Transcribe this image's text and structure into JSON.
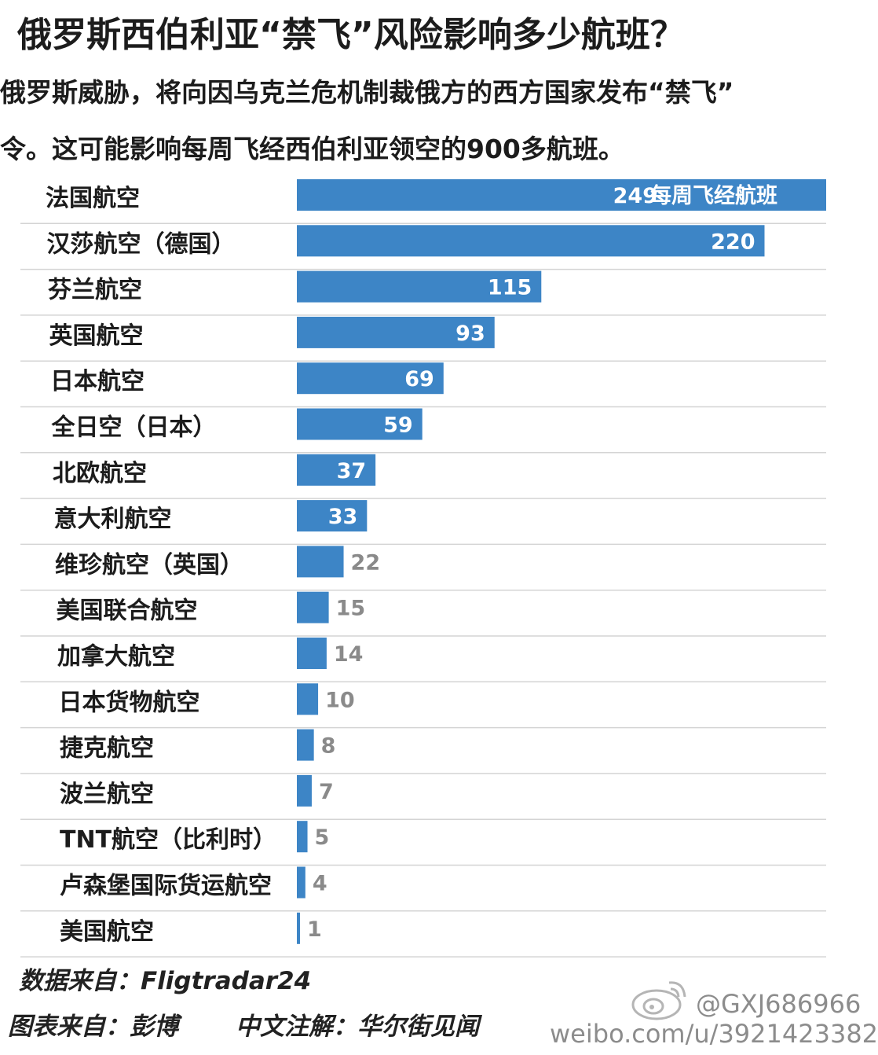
{
  "header": {
    "title": "俄罗斯西伯利亚“禁飞”风险影响多少航班？",
    "subtitle_line1": "俄罗斯威胁，将向因乌克兰危机制裁俄方的西方国家发布“禁飞”",
    "subtitle_line2": "令。这可能影响每周飞经西伯利亚领空的900多航班。"
  },
  "chart_data": {
    "type": "bar",
    "orientation": "horizontal",
    "categories": [
      "法国航空",
      "汉莎航空（德国）",
      "芬兰航空",
      "英国航空",
      "日本航空",
      "全日空（日本）",
      "北欧航空",
      "意大利航空",
      "维珍航空（英国）",
      "美国联合航空",
      "加拿大航空",
      "日本货物航空",
      "捷克航空",
      "波兰航空",
      "TNT航空（比利时）",
      "卢森堡国际货运航空",
      "美国航空"
    ],
    "values": [
      249,
      220,
      115,
      93,
      69,
      59,
      37,
      33,
      22,
      15,
      14,
      10,
      8,
      7,
      5,
      4,
      1
    ],
    "first_bar_unit_label": "每周飞经航班",
    "bar_color": "#3d85c6",
    "xlim": [
      0,
      249
    ],
    "grid": "horizontal row separators"
  },
  "footer": {
    "data_source": "数据来自：Fligtradar24",
    "chart_source": "图表来自：彭博",
    "annotation": "中文注解：华尔街见闻"
  },
  "watermark": {
    "handle": "@GXJ686966",
    "url": "weibo.com/u/3921423382"
  }
}
